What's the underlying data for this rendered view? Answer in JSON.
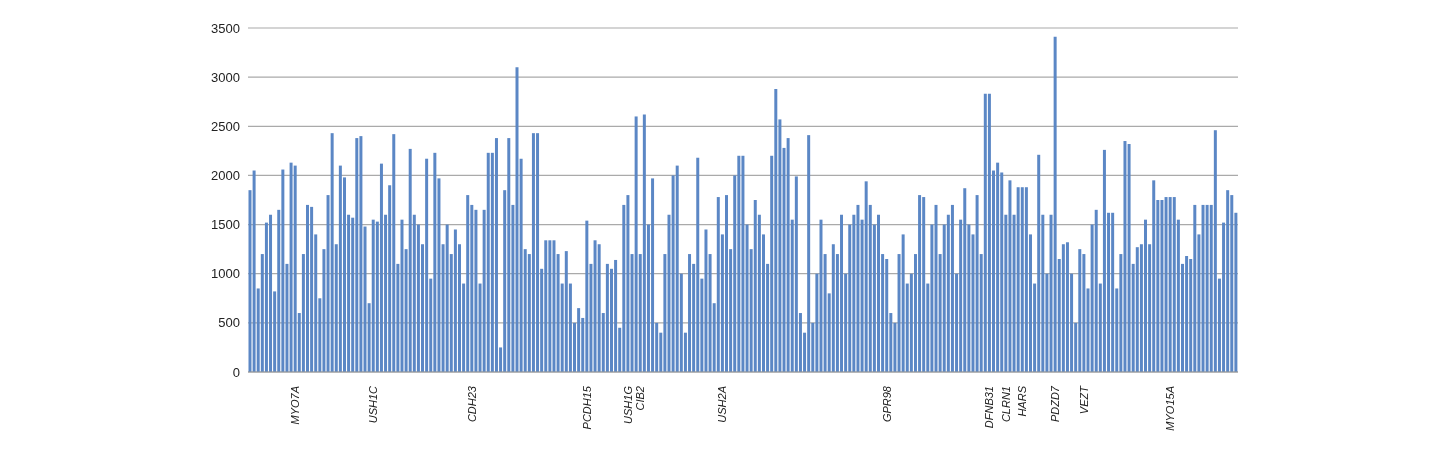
{
  "chart_data": {
    "type": "bar",
    "categories": [
      null,
      null,
      null,
      null,
      null,
      null,
      null,
      null,
      null,
      null,
      null,
      "MYO7A",
      null,
      null,
      null,
      null,
      null,
      null,
      null,
      null,
      null,
      null,
      null,
      null,
      null,
      null,
      null,
      null,
      null,
      null,
      "USH1C",
      null,
      null,
      null,
      null,
      null,
      null,
      null,
      null,
      null,
      null,
      null,
      null,
      null,
      null,
      null,
      null,
      null,
      null,
      null,
      null,
      null,
      null,
      null,
      "CDH23",
      null,
      null,
      null,
      null,
      null,
      null,
      null,
      null,
      null,
      null,
      null,
      null,
      null,
      null,
      null,
      null,
      null,
      null,
      null,
      null,
      null,
      null,
      null,
      null,
      null,
      null,
      null,
      "PCDH15",
      null,
      null,
      null,
      null,
      null,
      null,
      null,
      null,
      null,
      "USH1G",
      null,
      null,
      "CIB2",
      null,
      null,
      null,
      null,
      null,
      null,
      null,
      null,
      null,
      null,
      null,
      null,
      null,
      null,
      null,
      null,
      null,
      null,
      null,
      "USH2A",
      null,
      null,
      null,
      null,
      null,
      null,
      null,
      null,
      null,
      null,
      null,
      null,
      null,
      null,
      null,
      null,
      null,
      null,
      null,
      null,
      null,
      null,
      null,
      null,
      null,
      null,
      null,
      null,
      null,
      null,
      null,
      null,
      null,
      null,
      null,
      null,
      null,
      null,
      null,
      "GPR98",
      null,
      null,
      null,
      null,
      null,
      null,
      null,
      null,
      null,
      null,
      null,
      null,
      null,
      null,
      null,
      null,
      null,
      null,
      null,
      null,
      null,
      null,
      null,
      null,
      "DFNB31",
      null,
      null,
      null,
      "CLRN1",
      null,
      null,
      null,
      "HARS",
      null,
      null,
      null,
      null,
      null,
      null,
      null,
      "PDZD7",
      null,
      null,
      null,
      null,
      null,
      null,
      "VEZT",
      null,
      null,
      null,
      null,
      null,
      null,
      null,
      null,
      null,
      null,
      null,
      null,
      null,
      null,
      null,
      null,
      null,
      null,
      null,
      null,
      "MYO15A",
      null,
      null,
      null,
      null,
      null,
      null,
      null,
      null,
      null,
      null,
      null,
      null,
      null,
      null,
      null,
      null
    ],
    "values": [
      1850,
      2050,
      850,
      1200,
      1520,
      1600,
      820,
      1650,
      2060,
      1100,
      2130,
      2100,
      600,
      1200,
      1700,
      1680,
      1400,
      750,
      1250,
      1800,
      2430,
      1300,
      2100,
      1980,
      1600,
      1570,
      2380,
      2400,
      1480,
      700,
      1550,
      1530,
      2120,
      1600,
      1900,
      2420,
      1100,
      1550,
      1250,
      2270,
      1600,
      1500,
      1300,
      2170,
      950,
      2230,
      1970,
      1300,
      1500,
      1200,
      1450,
      1300,
      900,
      1800,
      1700,
      1650,
      900,
      1650,
      2230,
      2230,
      2380,
      250,
      1850,
      2380,
      1700,
      3100,
      2170,
      1250,
      1200,
      2430,
      2430,
      1050,
      1340,
      1340,
      1340,
      1200,
      900,
      1230,
      900,
      500,
      650,
      550,
      1540,
      1100,
      1340,
      1300,
      600,
      1100,
      1050,
      1140,
      450,
      1700,
      1800,
      1200,
      2600,
      1200,
      2620,
      1500,
      1970,
      500,
      400,
      1200,
      1600,
      2000,
      2100,
      1000,
      400,
      1200,
      1100,
      2180,
      950,
      1450,
      1200,
      700,
      1780,
      1400,
      1800,
      1250,
      2000,
      2200,
      2200,
      1500,
      1250,
      1750,
      1600,
      1400,
      1100,
      2200,
      2880,
      2570,
      2280,
      2380,
      1550,
      1990,
      600,
      400,
      2410,
      500,
      1000,
      1550,
      1200,
      800,
      1300,
      1200,
      1600,
      1000,
      1500,
      1600,
      1700,
      1550,
      1940,
      1700,
      1500,
      1600,
      1200,
      1150,
      600,
      500,
      1200,
      1400,
      900,
      1000,
      1200,
      1800,
      1780,
      900,
      1500,
      1700,
      1200,
      1500,
      1600,
      1700,
      1000,
      1550,
      1870,
      1500,
      1400,
      1800,
      1200,
      2830,
      2830,
      2050,
      2130,
      2030,
      1600,
      1950,
      1600,
      1880,
      1880,
      1880,
      1400,
      900,
      2210,
      1600,
      1000,
      1600,
      3410,
      1150,
      1300,
      1320,
      1000,
      500,
      1250,
      1200,
      850,
      1500,
      1650,
      900,
      2260,
      1620,
      1620,
      850,
      1200,
      2350,
      2320,
      1100,
      1270,
      1300,
      1550,
      1300,
      1950,
      1750,
      1750,
      1780,
      1780,
      1780,
      1550,
      1100,
      1180,
      1150,
      1700,
      1400,
      1700,
      1700,
      1700,
      2460,
      950,
      1520,
      1850,
      1800,
      1620
    ],
    "color": "#5b87c5",
    "ylim": [
      0,
      3500
    ],
    "yticks": [
      0,
      500,
      1000,
      1500,
      2000,
      2500,
      3000,
      3500
    ],
    "grid": "y"
  }
}
